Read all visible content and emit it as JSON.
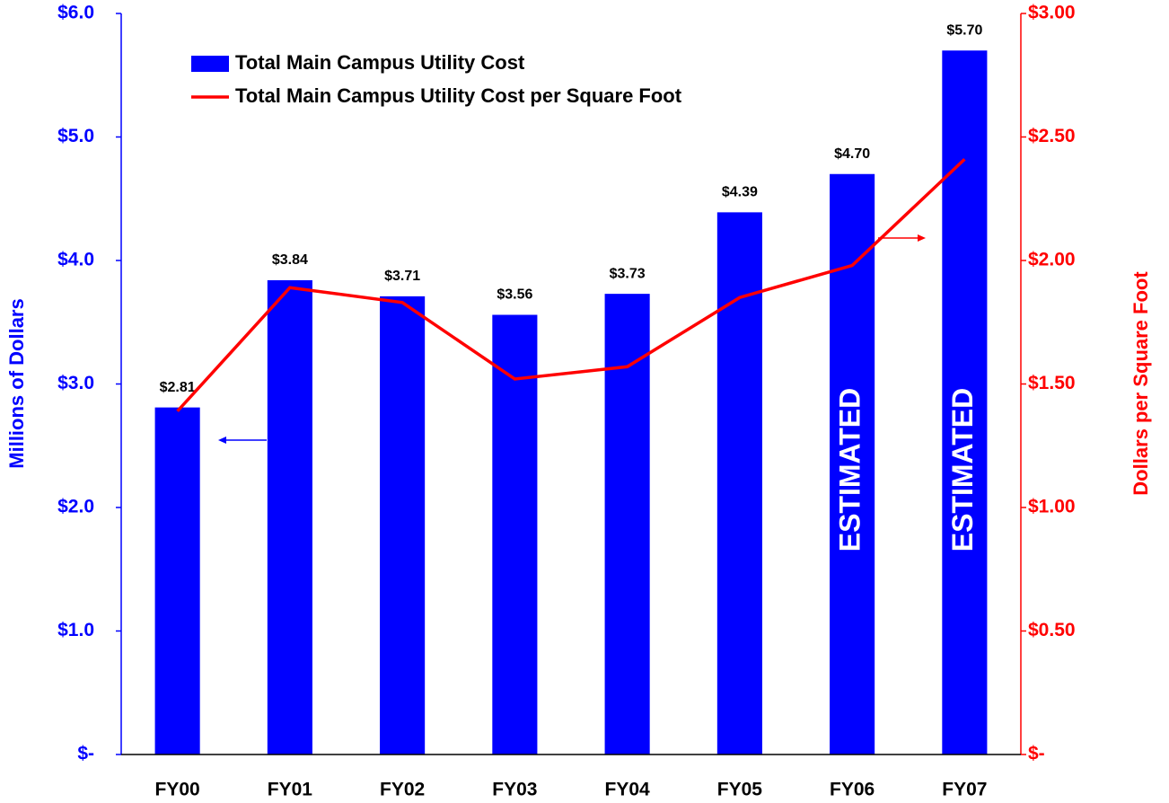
{
  "chart_data": {
    "type": "combo",
    "categories": [
      "FY00",
      "FY01",
      "FY02",
      "FY03",
      "FY04",
      "FY05",
      "FY06",
      "FY07"
    ],
    "series": [
      {
        "name": "Total Main Campus Utility Cost",
        "type": "bar",
        "color": "#0000ff",
        "values": [
          2.81,
          3.84,
          3.71,
          3.56,
          3.73,
          4.39,
          4.7,
          5.7
        ],
        "value_labels": [
          "$2.81",
          "$3.84",
          "$3.71",
          "$3.56",
          "$3.73",
          "$4.39",
          "$4.70",
          "$5.70"
        ]
      },
      {
        "name": "Total Main Campus Utility Cost per Square Foot",
        "type": "line",
        "color": "#ff0000",
        "axis": "y2",
        "values": [
          1.39,
          1.89,
          1.83,
          1.52,
          1.57,
          1.85,
          1.98,
          2.41
        ]
      }
    ],
    "ylabel": "Millions of Dollars",
    "y2label": "Dollars per Square Foot",
    "ylim": [
      0,
      6
    ],
    "yticks": [
      {
        "value": 0,
        "label": "$-"
      },
      {
        "value": 1,
        "label": "$1.0"
      },
      {
        "value": 2,
        "label": "$2.0"
      },
      {
        "value": 3,
        "label": "$3.0"
      },
      {
        "value": 4,
        "label": "$4.0"
      },
      {
        "value": 5,
        "label": "$5.0"
      },
      {
        "value": 6,
        "label": "$6.0"
      }
    ],
    "y2lim": [
      0,
      3
    ],
    "y2ticks": [
      {
        "value": 0,
        "label": "$-"
      },
      {
        "value": 0.5,
        "label": "$0.50"
      },
      {
        "value": 1,
        "label": "$1.00"
      },
      {
        "value": 1.5,
        "label": "$1.50"
      },
      {
        "value": 2,
        "label": "$2.00"
      },
      {
        "value": 2.5,
        "label": "$2.50"
      },
      {
        "value": 3,
        "label": "$3.00"
      }
    ],
    "annotations": [
      {
        "text": "ESTIMATED",
        "category": "FY06"
      },
      {
        "text": "ESTIMATED",
        "category": "FY07"
      }
    ],
    "grid": false,
    "legend": "upper left"
  }
}
